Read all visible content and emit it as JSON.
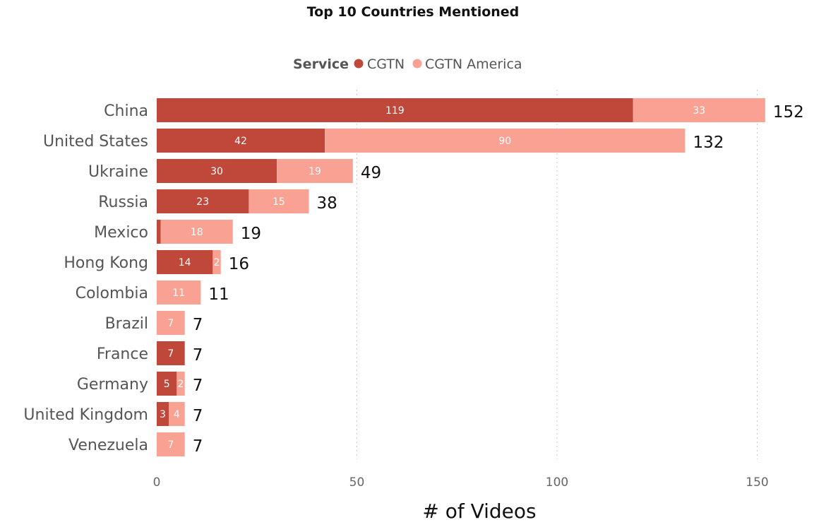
{
  "chart_data": {
    "type": "bar",
    "orientation": "horizontal",
    "stacked": true,
    "title": "Top 10 Countries Mentioned",
    "legend": {
      "title": "Service",
      "placement": "top-center",
      "entries": [
        "CGTN",
        "CGTN America"
      ]
    },
    "xlabel": "# of Videos",
    "ylabel": "",
    "xlim": [
      0,
      152
    ],
    "xticks": [
      0,
      50,
      100,
      150
    ],
    "grid": true,
    "categories": [
      "China",
      "United States",
      "Ukraine",
      "Russia",
      "Mexico",
      "Hong Kong",
      "Colombia",
      "Brazil",
      "France",
      "Germany",
      "United Kingdom",
      "Venezuela"
    ],
    "series": [
      {
        "name": "CGTN",
        "color": "#c0483a",
        "values": [
          119,
          42,
          30,
          23,
          1,
          14,
          0,
          0,
          7,
          5,
          3,
          0
        ],
        "labels": [
          "119",
          "42",
          "30",
          "23",
          "",
          "14",
          "",
          "",
          "7",
          "5",
          "3",
          ""
        ]
      },
      {
        "name": "CGTN America",
        "color": "#f9a192",
        "values": [
          33,
          90,
          19,
          15,
          18,
          2,
          11,
          7,
          0,
          2,
          4,
          7
        ],
        "labels": [
          "33",
          "90",
          "19",
          "15",
          "18",
          "2",
          "11",
          "7",
          "",
          "2",
          "4",
          "7"
        ]
      }
    ],
    "totals": [
      152,
      132,
      49,
      38,
      19,
      16,
      11,
      7,
      7,
      7,
      7,
      7
    ]
  }
}
